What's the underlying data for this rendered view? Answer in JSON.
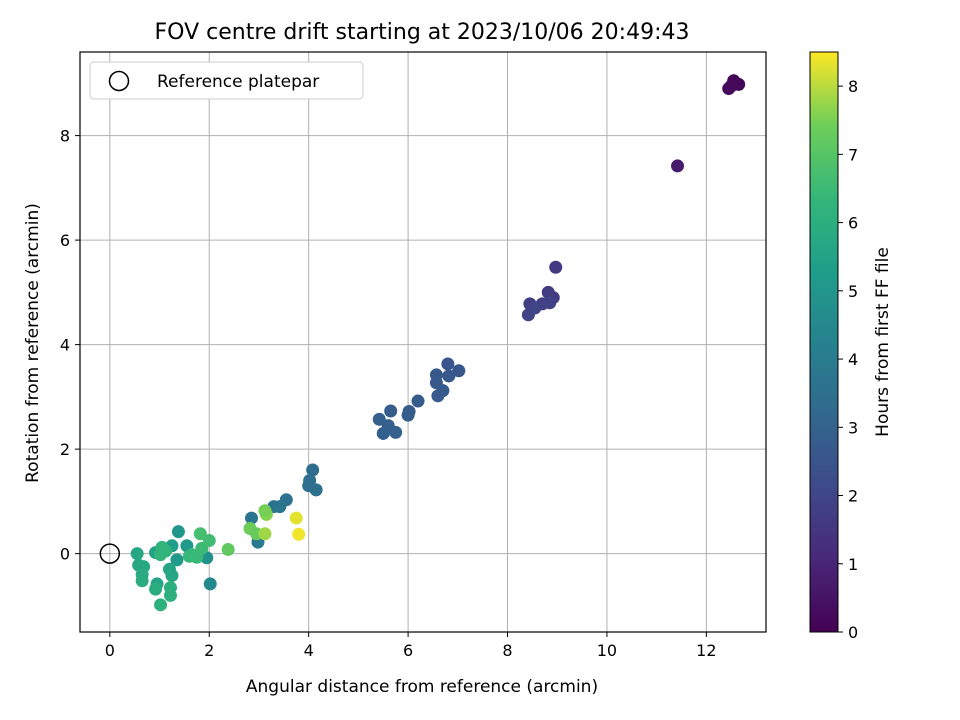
{
  "chart_data": {
    "type": "scatter",
    "title": "FOV centre drift starting at 2023/10/06 20:49:43",
    "xlabel": "Angular distance from reference (arcmin)",
    "ylabel": "Rotation from reference (arcmin)",
    "xlim": [
      -0.6,
      13.2
    ],
    "ylim": [
      -1.5,
      9.6
    ],
    "xticks": [
      "0",
      "2",
      "4",
      "6",
      "8",
      "10",
      "12"
    ],
    "yticks": [
      "0",
      "2",
      "4",
      "6",
      "8"
    ],
    "grid": true,
    "legend": {
      "placement": "top-left",
      "entries": [
        "Reference platepar"
      ]
    },
    "reference_point": {
      "x": 0,
      "y": 0
    },
    "colorbar": {
      "label": "Hours from first FF file",
      "colormap": "viridis",
      "range": [
        0,
        8.5
      ],
      "ticks": [
        "0",
        "1",
        "2",
        "3",
        "4",
        "5",
        "6",
        "7",
        "8"
      ]
    },
    "points": [
      {
        "x": 12.55,
        "y": 9.05,
        "h": 0.1
      },
      {
        "x": 12.65,
        "y": 8.98,
        "h": 0.15
      },
      {
        "x": 12.45,
        "y": 8.9,
        "h": 0.2
      },
      {
        "x": 12.5,
        "y": 8.95,
        "h": 0.25
      },
      {
        "x": 11.42,
        "y": 7.42,
        "h": 0.7
      },
      {
        "x": 8.97,
        "y": 5.48,
        "h": 1.6
      },
      {
        "x": 8.82,
        "y": 5.0,
        "h": 1.65
      },
      {
        "x": 8.92,
        "y": 4.9,
        "h": 1.7
      },
      {
        "x": 8.45,
        "y": 4.78,
        "h": 1.75
      },
      {
        "x": 8.7,
        "y": 4.78,
        "h": 1.8
      },
      {
        "x": 8.85,
        "y": 4.8,
        "h": 1.85
      },
      {
        "x": 8.42,
        "y": 4.57,
        "h": 1.9
      },
      {
        "x": 8.55,
        "y": 4.7,
        "h": 1.95
      },
      {
        "x": 6.8,
        "y": 3.63,
        "h": 2.5
      },
      {
        "x": 7.02,
        "y": 3.5,
        "h": 2.55
      },
      {
        "x": 6.57,
        "y": 3.42,
        "h": 2.6
      },
      {
        "x": 6.82,
        "y": 3.4,
        "h": 2.62
      },
      {
        "x": 6.57,
        "y": 3.27,
        "h": 2.65
      },
      {
        "x": 6.7,
        "y": 3.12,
        "h": 2.7
      },
      {
        "x": 6.6,
        "y": 3.02,
        "h": 2.72
      },
      {
        "x": 6.2,
        "y": 2.92,
        "h": 2.75
      },
      {
        "x": 6.02,
        "y": 2.72,
        "h": 2.8
      },
      {
        "x": 6.0,
        "y": 2.65,
        "h": 2.82
      },
      {
        "x": 5.65,
        "y": 2.73,
        "h": 2.85
      },
      {
        "x": 5.42,
        "y": 2.57,
        "h": 2.88
      },
      {
        "x": 5.6,
        "y": 2.45,
        "h": 2.9
      },
      {
        "x": 5.5,
        "y": 2.3,
        "h": 2.92
      },
      {
        "x": 5.75,
        "y": 2.32,
        "h": 2.95
      },
      {
        "x": 4.08,
        "y": 1.6,
        "h": 3.4
      },
      {
        "x": 4.02,
        "y": 1.4,
        "h": 3.45
      },
      {
        "x": 4.15,
        "y": 1.22,
        "h": 3.5
      },
      {
        "x": 4.0,
        "y": 1.3,
        "h": 3.52
      },
      {
        "x": 3.55,
        "y": 1.03,
        "h": 3.6
      },
      {
        "x": 3.3,
        "y": 0.9,
        "h": 3.65
      },
      {
        "x": 3.42,
        "y": 0.9,
        "h": 3.7
      },
      {
        "x": 2.85,
        "y": 0.68,
        "h": 3.75
      },
      {
        "x": 2.98,
        "y": 0.22,
        "h": 3.9
      },
      {
        "x": 2.02,
        "y": -0.58,
        "h": 4.5
      },
      {
        "x": 1.95,
        "y": -0.08,
        "h": 4.8
      },
      {
        "x": 1.38,
        "y": 0.42,
        "h": 5.0
      },
      {
        "x": 1.55,
        "y": 0.15,
        "h": 5.1
      },
      {
        "x": 1.35,
        "y": -0.12,
        "h": 5.2
      },
      {
        "x": 1.25,
        "y": 0.15,
        "h": 5.3
      },
      {
        "x": 0.92,
        "y": 0.02,
        "h": 5.5
      },
      {
        "x": 0.95,
        "y": -0.58,
        "h": 5.55
      },
      {
        "x": 1.2,
        "y": -0.3,
        "h": 5.6
      },
      {
        "x": 1.25,
        "y": -0.42,
        "h": 5.65
      },
      {
        "x": 0.55,
        "y": 0.0,
        "h": 5.7
      },
      {
        "x": 0.58,
        "y": -0.22,
        "h": 5.75
      },
      {
        "x": 0.68,
        "y": -0.25,
        "h": 5.8
      },
      {
        "x": 0.65,
        "y": -0.4,
        "h": 5.85
      },
      {
        "x": 0.65,
        "y": -0.52,
        "h": 5.9
      },
      {
        "x": 0.92,
        "y": -0.68,
        "h": 5.95
      },
      {
        "x": 1.22,
        "y": -0.65,
        "h": 6.0
      },
      {
        "x": 1.22,
        "y": -0.8,
        "h": 6.05
      },
      {
        "x": 1.02,
        "y": -0.98,
        "h": 6.1
      },
      {
        "x": 1.05,
        "y": 0.12,
        "h": 6.2
      },
      {
        "x": 1.12,
        "y": 0.05,
        "h": 6.25
      },
      {
        "x": 1.02,
        "y": -0.02,
        "h": 6.3
      },
      {
        "x": 1.65,
        "y": -0.02,
        "h": 6.35
      },
      {
        "x": 1.6,
        "y": -0.05,
        "h": 6.4
      },
      {
        "x": 1.75,
        "y": -0.07,
        "h": 6.45
      },
      {
        "x": 1.85,
        "y": 0.1,
        "h": 6.5
      },
      {
        "x": 2.0,
        "y": 0.25,
        "h": 6.6
      },
      {
        "x": 1.82,
        "y": 0.38,
        "h": 6.7
      },
      {
        "x": 3.75,
        "y": 0.68,
        "h": 8.3
      },
      {
        "x": 3.8,
        "y": 0.37,
        "h": 8.4
      },
      {
        "x": 3.15,
        "y": 0.75,
        "h": 7.6
      },
      {
        "x": 3.12,
        "y": 0.82,
        "h": 7.5
      },
      {
        "x": 2.82,
        "y": 0.48,
        "h": 7.4
      },
      {
        "x": 2.95,
        "y": 0.38,
        "h": 7.3
      },
      {
        "x": 3.12,
        "y": 0.38,
        "h": 7.8
      },
      {
        "x": 2.38,
        "y": 0.08,
        "h": 7.2
      }
    ]
  }
}
